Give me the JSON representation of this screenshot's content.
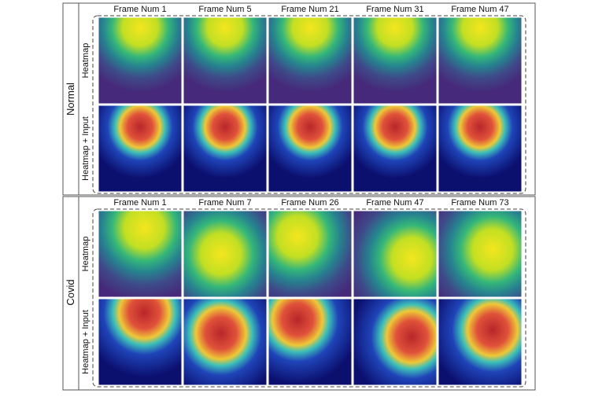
{
  "panels": [
    {
      "label": "Normal",
      "rows": [
        "Heatmap",
        "Heatmap + Input"
      ],
      "columns": [
        "Frame Num 1",
        "Frame Num 5",
        "Frame Num 21",
        "Frame Num 31",
        "Frame Num 47"
      ]
    },
    {
      "label": "Covid",
      "rows": [
        "Heatmap",
        "Heatmap + Input"
      ],
      "columns": [
        "Frame Num 1",
        "Frame Num 7",
        "Frame Num 26",
        "Frame Num 47",
        "Frame Num 73"
      ]
    }
  ]
}
